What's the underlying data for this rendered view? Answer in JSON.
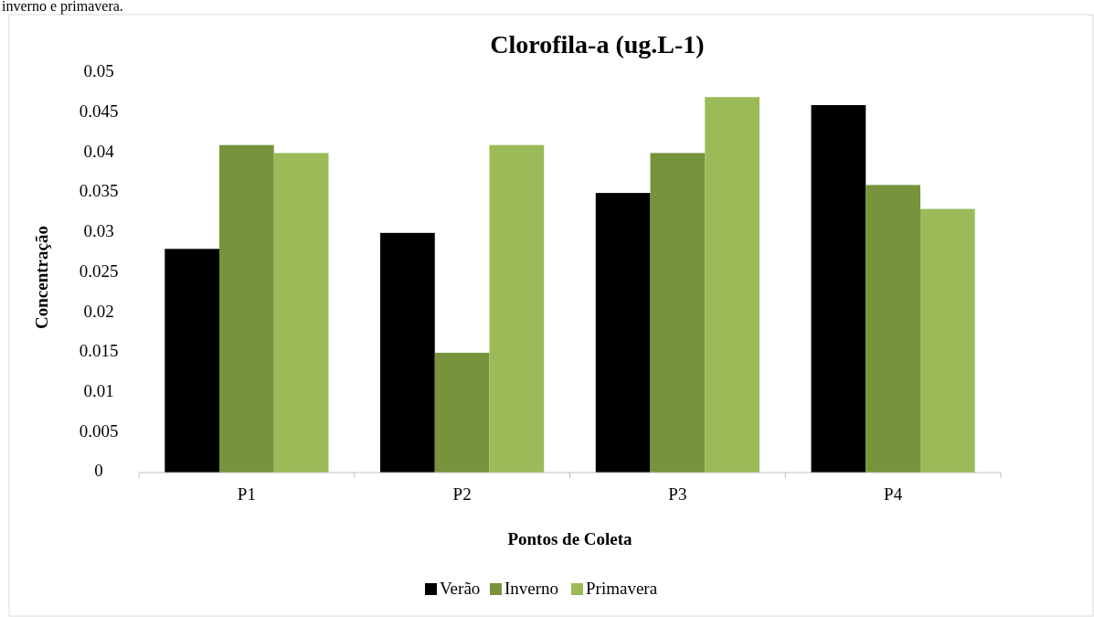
{
  "chart_data": {
    "type": "bar",
    "title": "Clorofila-a  (ug.L-1)",
    "xlabel": "Pontos de Coleta",
    "ylabel": "Concentração",
    "annotations": [
      "inverno e primavera."
    ],
    "categories": [
      "P1",
      "P2",
      "P3",
      "P4"
    ],
    "series": [
      {
        "name": "Verão",
        "color": "#000000",
        "values": [
          0.028,
          0.03,
          0.035,
          0.046
        ]
      },
      {
        "name": "Inverno",
        "color": "#77933c",
        "values": [
          0.041,
          0.015,
          0.04,
          0.036
        ]
      },
      {
        "name": "Primavera",
        "color": "#9bbb59",
        "values": [
          0.04,
          0.041,
          0.047,
          0.033
        ]
      }
    ],
    "ylim": [
      0,
      0.05
    ],
    "yticks": [
      0,
      0.005,
      0.01,
      0.015,
      0.02,
      0.025,
      0.03,
      0.035,
      0.04,
      0.045,
      0.05
    ],
    "grid": false,
    "legend": "bottom"
  }
}
